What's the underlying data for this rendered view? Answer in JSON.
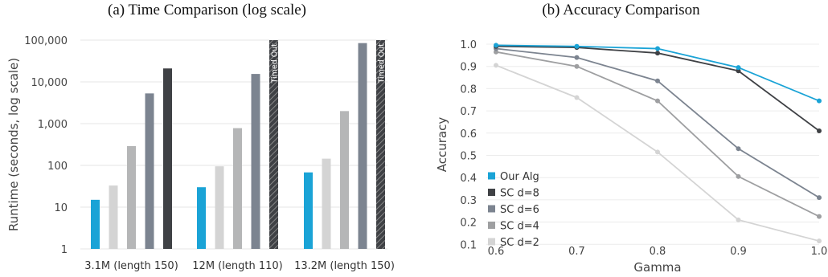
{
  "chart_data": [
    {
      "type": "bar",
      "title": "(a) Time Comparison (log scale)",
      "ylabel": "Runtime (seconds, log scale)",
      "xlabel": "",
      "yscale": "log",
      "ylim": [
        1,
        100000
      ],
      "yticks": [
        1,
        10,
        100,
        1000,
        10000,
        100000
      ],
      "ytick_labels": [
        "1",
        "10",
        "100",
        "1,000",
        "10,000",
        "100,000"
      ],
      "grid": "horizontal",
      "categories": [
        "3.1M (length 150)",
        "12M (length 110)",
        "13.2M (length 150)"
      ],
      "series": [
        {
          "values": [
            15,
            30,
            68
          ],
          "color": "#1aa3d6"
        },
        {
          "values": [
            33,
            95,
            145
          ],
          "color": "#d4d4d4"
        },
        {
          "values": [
            290,
            780,
            2000
          ],
          "color": "#b5b6b7"
        },
        {
          "values": [
            5300,
            15500,
            85000
          ],
          "color": "#7c8490"
        },
        {
          "values": [
            21000,
            null,
            null
          ],
          "color": "#3f4145",
          "timed_out": [
            false,
            true,
            true
          ]
        }
      ],
      "timed_out_label": "Timed Out"
    },
    {
      "type": "line",
      "title": "(b) Accuracy Comparison",
      "xlabel": "Gamma",
      "ylabel": "Accuracy",
      "x": [
        0.6,
        0.7,
        0.8,
        0.9,
        1.0
      ],
      "xtick_labels": [
        "0.6",
        "0.7",
        "0.8",
        "0.9",
        "1.0"
      ],
      "ylim": [
        0,
        1.0
      ],
      "yticks": [
        0.1,
        0.2,
        0.3,
        0.4,
        0.5,
        0.6,
        0.7,
        0.8,
        0.9,
        1.0
      ],
      "ytick_labels": [
        "0.1",
        "0.2",
        "0.3",
        "0.4",
        "0.5",
        "0.6",
        "0.7",
        "0.8",
        "0.9",
        "1.0"
      ],
      "grid": "horizontal",
      "legend_position": "left",
      "series": [
        {
          "name": "Our Alg",
          "values": [
            0.995,
            0.99,
            0.98,
            0.895,
            0.745
          ],
          "color": "#1aa3d6"
        },
        {
          "name": "SC d=8",
          "values": [
            0.99,
            0.985,
            0.96,
            0.88,
            0.61
          ],
          "color": "#3f4145"
        },
        {
          "name": "SC d=6",
          "values": [
            0.98,
            0.94,
            0.835,
            0.53,
            0.31
          ],
          "color": "#7c8490"
        },
        {
          "name": "SC d=4",
          "values": [
            0.965,
            0.9,
            0.745,
            0.405,
            0.225
          ],
          "color": "#9e9fa1"
        },
        {
          "name": "SC d=2",
          "values": [
            0.905,
            0.76,
            0.515,
            0.21,
            0.115
          ],
          "color": "#d4d4d4"
        }
      ]
    }
  ]
}
